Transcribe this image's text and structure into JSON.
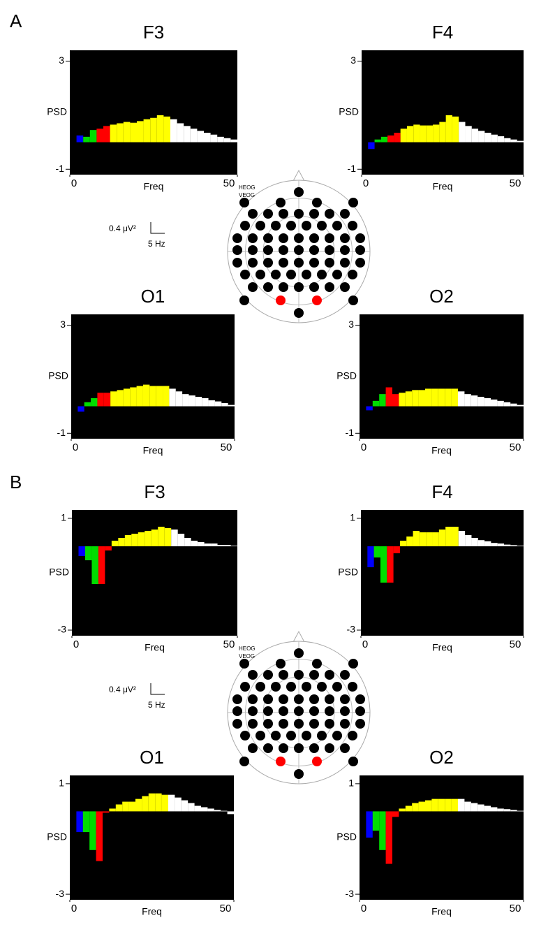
{
  "panels": [
    {
      "label": "A",
      "scale_amplitude": "0.4 μV²",
      "scale_frequency": "5 Hz",
      "eog_labels": [
        "HEOG",
        "VEOG"
      ]
    },
    {
      "label": "B",
      "scale_amplitude": "0.4 μV²",
      "scale_frequency": "5 Hz",
      "eog_labels": [
        "HEOG",
        "VEOG"
      ]
    }
  ],
  "chart_data": [
    {
      "type": "histogram",
      "title": "F3",
      "xlabel": "Freq",
      "ylabel": "PSD",
      "xlim": [
        0,
        50
      ],
      "xticks": [
        0,
        50
      ],
      "ylim": [
        -1.2,
        3.4
      ],
      "yticks": [
        -1,
        3
      ],
      "series": [
        {
          "color": "#0000ff",
          "bins": [
            2,
            4
          ],
          "values": [
            0.25
          ]
        },
        {
          "color": "#00dd00",
          "bins": [
            4,
            6,
            8
          ],
          "values": [
            0.2,
            0.45
          ]
        },
        {
          "color": "#ff0000",
          "bins": [
            8,
            10,
            12
          ],
          "values": [
            0.5,
            0.6
          ]
        },
        {
          "color": "#ffff00",
          "bins": [
            12,
            14,
            16,
            18,
            20,
            22,
            24,
            26,
            28,
            30
          ],
          "values": [
            0.65,
            0.7,
            0.75,
            0.72,
            0.78,
            0.85,
            0.9,
            1.0,
            0.95
          ]
        },
        {
          "color": "#ffffff",
          "bins": [
            30,
            32,
            34,
            36,
            38,
            40,
            42,
            44,
            46,
            48,
            50
          ],
          "values": [
            0.85,
            0.7,
            0.6,
            0.5,
            0.42,
            0.35,
            0.28,
            0.2,
            0.15,
            0.1
          ]
        }
      ]
    },
    {
      "type": "histogram",
      "title": "F4",
      "xlabel": "Freq",
      "ylabel": "PSD",
      "xlim": [
        0,
        50
      ],
      "xticks": [
        0,
        50
      ],
      "ylim": [
        -1.2,
        3.4
      ],
      "yticks": [
        -1,
        3
      ],
      "series": [
        {
          "color": "#0000ff",
          "bins": [
            2,
            4
          ],
          "values": [
            -0.25
          ]
        },
        {
          "color": "#00dd00",
          "bins": [
            4,
            6,
            8
          ],
          "values": [
            0.1,
            0.2
          ]
        },
        {
          "color": "#ff0000",
          "bins": [
            8,
            10,
            12
          ],
          "values": [
            0.25,
            0.35
          ]
        },
        {
          "color": "#ffff00",
          "bins": [
            12,
            14,
            16,
            18,
            20,
            22,
            24,
            26,
            28,
            30
          ],
          "values": [
            0.5,
            0.6,
            0.65,
            0.62,
            0.62,
            0.65,
            0.75,
            1.0,
            0.95
          ]
        },
        {
          "color": "#ffffff",
          "bins": [
            30,
            32,
            34,
            36,
            38,
            40,
            42,
            44,
            46,
            48,
            50
          ],
          "values": [
            0.75,
            0.6,
            0.5,
            0.42,
            0.35,
            0.28,
            0.22,
            0.15,
            0.1,
            0.05
          ]
        }
      ]
    },
    {
      "type": "histogram",
      "title": "O1",
      "xlabel": "Freq",
      "ylabel": "PSD",
      "xlim": [
        0,
        50
      ],
      "xticks": [
        0,
        50
      ],
      "ylim": [
        -1.2,
        3.4
      ],
      "yticks": [
        -1,
        3
      ],
      "series": [
        {
          "color": "#0000ff",
          "bins": [
            2,
            4
          ],
          "values": [
            -0.2
          ]
        },
        {
          "color": "#00dd00",
          "bins": [
            4,
            6,
            8
          ],
          "values": [
            0.15,
            0.3
          ]
        },
        {
          "color": "#ff0000",
          "bins": [
            8,
            10,
            12
          ],
          "values": [
            0.5,
            0.5
          ]
        },
        {
          "color": "#ffff00",
          "bins": [
            12,
            14,
            16,
            18,
            20,
            22,
            24,
            26,
            28,
            30
          ],
          "values": [
            0.55,
            0.6,
            0.65,
            0.7,
            0.75,
            0.8,
            0.75,
            0.75,
            0.75
          ]
        },
        {
          "color": "#ffffff",
          "bins": [
            30,
            32,
            34,
            36,
            38,
            40,
            42,
            44,
            46,
            48,
            50
          ],
          "values": [
            0.65,
            0.55,
            0.45,
            0.4,
            0.35,
            0.3,
            0.22,
            0.18,
            0.12,
            0.05
          ]
        }
      ]
    },
    {
      "type": "histogram",
      "title": "O2",
      "xlabel": "Freq",
      "ylabel": "PSD",
      "xlim": [
        0,
        50
      ],
      "xticks": [
        0,
        50
      ],
      "ylim": [
        -1.2,
        3.4
      ],
      "yticks": [
        -1,
        3
      ],
      "series": [
        {
          "color": "#0000ff",
          "bins": [
            2,
            4
          ],
          "values": [
            -0.15
          ]
        },
        {
          "color": "#00dd00",
          "bins": [
            4,
            6,
            8
          ],
          "values": [
            0.2,
            0.45
          ]
        },
        {
          "color": "#ff0000",
          "bins": [
            8,
            10,
            12
          ],
          "values": [
            0.7,
            0.45
          ]
        },
        {
          "color": "#ffff00",
          "bins": [
            12,
            14,
            16,
            18,
            20,
            22,
            24,
            26,
            28,
            30
          ],
          "values": [
            0.5,
            0.55,
            0.6,
            0.6,
            0.65,
            0.65,
            0.65,
            0.65,
            0.65
          ]
        },
        {
          "color": "#ffffff",
          "bins": [
            30,
            32,
            34,
            36,
            38,
            40,
            42,
            44,
            46,
            48,
            50
          ],
          "values": [
            0.55,
            0.45,
            0.4,
            0.35,
            0.3,
            0.25,
            0.2,
            0.15,
            0.1,
            0.05
          ]
        }
      ]
    },
    {
      "type": "histogram",
      "title": "F3",
      "xlabel": "Freq",
      "ylabel": "PSD",
      "xlim": [
        0,
        50
      ],
      "xticks": [
        0,
        50
      ],
      "ylim": [
        -3.2,
        1.3
      ],
      "yticks": [
        -3,
        1
      ],
      "series": [
        {
          "color": "#0000ff",
          "bins": [
            2,
            4
          ],
          "values": [
            -0.35
          ]
        },
        {
          "color": "#00dd00",
          "bins": [
            4,
            6,
            8
          ],
          "values": [
            -0.5,
            -1.35
          ]
        },
        {
          "color": "#ff0000",
          "bins": [
            8,
            10,
            12
          ],
          "values": [
            -1.35,
            -0.15
          ]
        },
        {
          "color": "#ffff00",
          "bins": [
            12,
            14,
            16,
            18,
            20,
            22,
            24,
            26,
            28,
            30
          ],
          "values": [
            0.2,
            0.3,
            0.4,
            0.45,
            0.5,
            0.55,
            0.6,
            0.7,
            0.65
          ]
        },
        {
          "color": "#ffffff",
          "bins": [
            30,
            32,
            34,
            36,
            38,
            40,
            42,
            44,
            46,
            48,
            50
          ],
          "values": [
            0.6,
            0.45,
            0.3,
            0.2,
            0.15,
            0.1,
            0.1,
            0.05,
            0.05,
            0.02
          ]
        }
      ]
    },
    {
      "type": "histogram",
      "title": "F4",
      "xlabel": "Freq",
      "ylabel": "PSD",
      "xlim": [
        0,
        50
      ],
      "xticks": [
        0,
        50
      ],
      "ylim": [
        -3.2,
        1.3
      ],
      "yticks": [
        -3,
        1
      ],
      "series": [
        {
          "color": "#0000ff",
          "bins": [
            2,
            4
          ],
          "values": [
            -0.75
          ]
        },
        {
          "color": "#00dd00",
          "bins": [
            4,
            6,
            8
          ],
          "values": [
            -0.4,
            -1.3
          ]
        },
        {
          "color": "#ff0000",
          "bins": [
            8,
            10,
            12
          ],
          "values": [
            -1.3,
            -0.25
          ]
        },
        {
          "color": "#ffff00",
          "bins": [
            12,
            14,
            16,
            18,
            20,
            22,
            24,
            26,
            28,
            30
          ],
          "values": [
            0.2,
            0.35,
            0.55,
            0.5,
            0.5,
            0.5,
            0.6,
            0.7,
            0.7
          ]
        },
        {
          "color": "#ffffff",
          "bins": [
            30,
            32,
            34,
            36,
            38,
            40,
            42,
            44,
            46,
            48,
            50
          ],
          "values": [
            0.55,
            0.4,
            0.3,
            0.22,
            0.18,
            0.12,
            0.1,
            0.06,
            0.04,
            0.02
          ]
        }
      ]
    },
    {
      "type": "histogram",
      "title": "O1",
      "xlabel": "Freq",
      "ylabel": "PSD",
      "xlim": [
        0,
        50
      ],
      "xticks": [
        0,
        50
      ],
      "ylim": [
        -3.2,
        1.3
      ],
      "yticks": [
        -3,
        1
      ],
      "series": [
        {
          "color": "#0000ff",
          "bins": [
            2,
            4
          ],
          "values": [
            -0.75
          ]
        },
        {
          "color": "#00dd00",
          "bins": [
            4,
            6,
            8
          ],
          "values": [
            -0.75,
            -1.4
          ]
        },
        {
          "color": "#ff0000",
          "bins": [
            8,
            10,
            12
          ],
          "values": [
            -1.8,
            -0.05
          ]
        },
        {
          "color": "#ffff00",
          "bins": [
            12,
            14,
            16,
            18,
            20,
            22,
            24,
            26,
            28,
            30
          ],
          "values": [
            0.1,
            0.25,
            0.35,
            0.35,
            0.45,
            0.55,
            0.65,
            0.65,
            0.6
          ]
        },
        {
          "color": "#ffffff",
          "bins": [
            30,
            32,
            34,
            36,
            38,
            40,
            42,
            44,
            46,
            48,
            50
          ],
          "values": [
            0.6,
            0.5,
            0.4,
            0.3,
            0.2,
            0.15,
            0.1,
            0.05,
            0.02,
            -0.1
          ]
        }
      ]
    },
    {
      "type": "histogram",
      "title": "O2",
      "xlabel": "Freq",
      "ylabel": "PSD",
      "xlim": [
        0,
        50
      ],
      "xticks": [
        0,
        50
      ],
      "ylim": [
        -3.2,
        1.3
      ],
      "yticks": [
        -3,
        1
      ],
      "series": [
        {
          "color": "#0000ff",
          "bins": [
            2,
            4
          ],
          "values": [
            -0.95
          ]
        },
        {
          "color": "#00dd00",
          "bins": [
            4,
            6,
            8
          ],
          "values": [
            -0.7,
            -1.4
          ]
        },
        {
          "color": "#ff0000",
          "bins": [
            8,
            10,
            12
          ],
          "values": [
            -1.9,
            -0.2
          ]
        },
        {
          "color": "#ffff00",
          "bins": [
            12,
            14,
            16,
            18,
            20,
            22,
            24,
            26,
            28,
            30
          ],
          "values": [
            0.1,
            0.2,
            0.3,
            0.35,
            0.4,
            0.45,
            0.45,
            0.45,
            0.45
          ]
        },
        {
          "color": "#ffffff",
          "bins": [
            30,
            32,
            34,
            36,
            38,
            40,
            42,
            44,
            46,
            48,
            50
          ],
          "values": [
            0.45,
            0.35,
            0.3,
            0.25,
            0.2,
            0.15,
            0.1,
            0.08,
            0.05,
            0.02
          ]
        }
      ]
    }
  ]
}
